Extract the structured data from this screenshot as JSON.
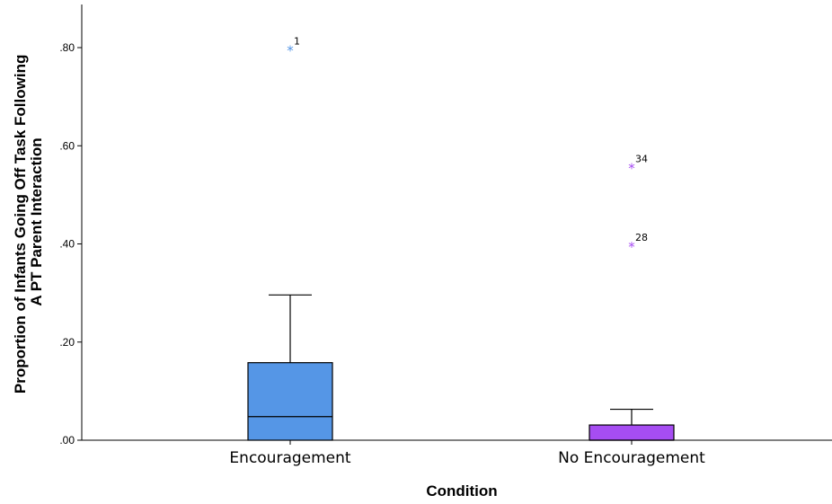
{
  "chart_data": {
    "type": "boxplot",
    "title": "",
    "xlabel": "Condition",
    "ylabel": [
      "Proportion of Infants Going Off Task Following",
      "A PT Parent Interaction"
    ],
    "ylim": [
      0,
      0.88
    ],
    "yticks": [
      {
        "value": 0.0,
        "label": ".00"
      },
      {
        "value": 0.2,
        "label": ".20"
      },
      {
        "value": 0.4,
        "label": ".40"
      },
      {
        "value": 0.6,
        "label": ".60"
      },
      {
        "value": 0.8,
        "label": ".80"
      }
    ],
    "grid": false,
    "categories": [
      "Encouragement",
      "No Encouragement"
    ],
    "boxes": [
      {
        "category": "Encouragement",
        "color": "#5596e6",
        "whisker_low": 0.0,
        "q1": 0.0,
        "median": 0.048,
        "q3": 0.158,
        "whisker_high": 0.296,
        "outliers": [
          {
            "value": 0.795,
            "label": "1",
            "marker": "*"
          }
        ]
      },
      {
        "category": "No Encouragement",
        "color": "#a64df2",
        "whisker_low": 0.0,
        "q1": 0.0,
        "median": 0.0,
        "q3": 0.031,
        "whisker_high": 0.063,
        "outliers": [
          {
            "value": 0.556,
            "label": "34",
            "marker": "*"
          },
          {
            "value": 0.395,
            "label": "28",
            "marker": "*"
          }
        ]
      }
    ]
  }
}
